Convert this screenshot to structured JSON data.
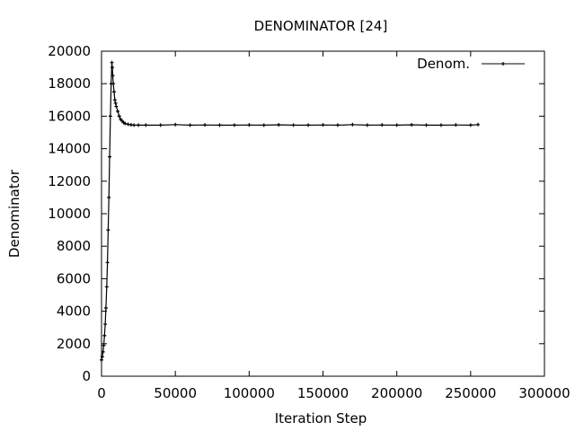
{
  "chart_data": {
    "type": "line",
    "title": "DENOMINATOR [24]",
    "xlabel": "Iteration Step",
    "ylabel": "Denominator",
    "xlim": [
      0,
      300000
    ],
    "ylim": [
      0,
      20000
    ],
    "xticks": [
      0,
      50000,
      100000,
      150000,
      200000,
      250000,
      300000
    ],
    "yticks": [
      0,
      2000,
      4000,
      6000,
      8000,
      10000,
      12000,
      14000,
      16000,
      18000,
      20000
    ],
    "xtick_labels": [
      "0",
      "50000",
      "100000",
      "150000",
      "200000",
      "250000",
      "300000"
    ],
    "ytick_labels": [
      "0",
      "2000",
      "4000",
      "6000",
      "8000",
      "10000",
      "12000",
      "14000",
      "16000",
      "18000",
      "20000"
    ],
    "grid": false,
    "legend": {
      "position": "top-right",
      "entries": [
        "Denom."
      ]
    },
    "series": [
      {
        "name": "Denom.",
        "color": "#000000",
        "marker": "plus",
        "x": [
          0,
          500,
          1000,
          1500,
          2000,
          2500,
          3000,
          3500,
          4000,
          4500,
          5000,
          5500,
          6000,
          6500,
          7000,
          7300,
          7600,
          8000,
          8500,
          9000,
          9500,
          10000,
          11000,
          12000,
          13000,
          14000,
          15000,
          16000,
          18000,
          20000,
          22000,
          25000,
          30000,
          40000,
          50000,
          60000,
          70000,
          80000,
          90000,
          100000,
          110000,
          120000,
          130000,
          140000,
          150000,
          160000,
          170000,
          180000,
          190000,
          200000,
          210000,
          220000,
          230000,
          240000,
          250000,
          255000
        ],
        "y": [
          1000,
          1200,
          1500,
          1900,
          2500,
          3200,
          4200,
          5500,
          7000,
          9000,
          11000,
          13500,
          16000,
          18000,
          19300,
          19000,
          18500,
          18000,
          17500,
          17000,
          16800,
          16600,
          16300,
          16000,
          15800,
          15700,
          15600,
          15550,
          15500,
          15470,
          15450,
          15450,
          15450,
          15450,
          15480,
          15450,
          15460,
          15450,
          15450,
          15460,
          15450,
          15470,
          15450,
          15450,
          15460,
          15450,
          15480,
          15450,
          15460,
          15450,
          15470,
          15450,
          15450,
          15460,
          15450,
          15480
        ]
      }
    ]
  }
}
